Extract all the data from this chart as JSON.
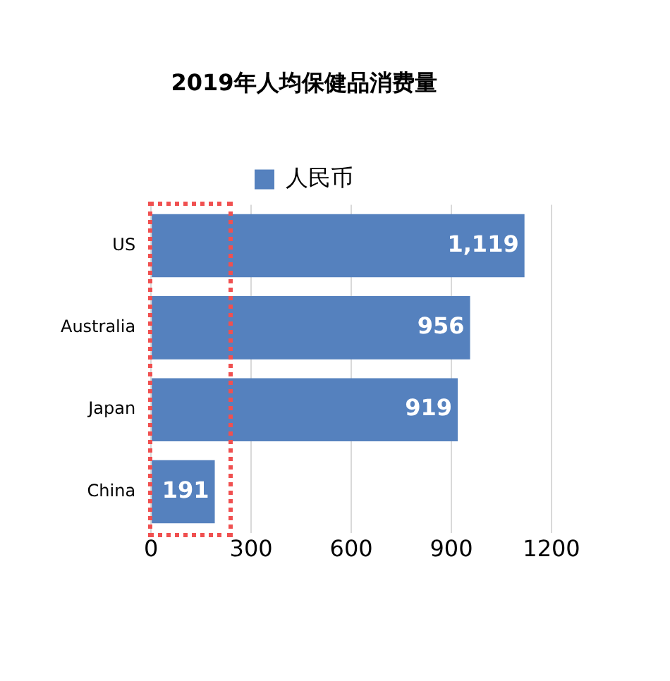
{
  "chart_data": {
    "type": "bar",
    "orientation": "horizontal",
    "title": "2019年人均保健品消费量",
    "categories": [
      "US",
      "Australia",
      "Japan",
      "China"
    ],
    "series": [
      {
        "name": "人民币",
        "color": "#5581be",
        "values": [
          1119,
          956,
          919,
          191
        ]
      }
    ],
    "value_labels": [
      "1,119",
      "956",
      "919",
      "191"
    ],
    "xlim": [
      0,
      1200
    ],
    "xticks": [
      0,
      300,
      600,
      900,
      1200
    ],
    "grid": "x",
    "legend": "top"
  }
}
